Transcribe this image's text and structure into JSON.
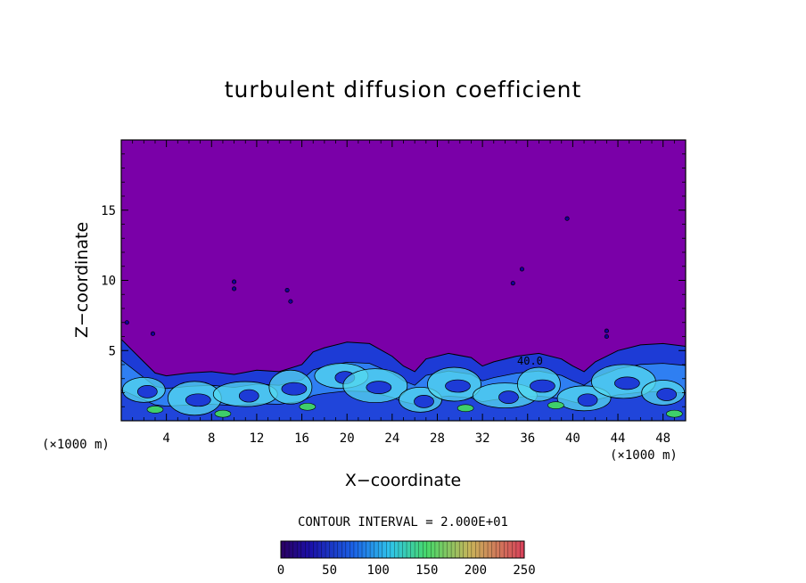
{
  "chart_data": {
    "type": "heatmap",
    "title": "turbulent diffusion coefficient",
    "xlabel": "X−coordinate",
    "ylabel": "Z−coordinate",
    "x_unit_label": "(×1000 m)",
    "xlim": [
      0,
      50
    ],
    "ylim": [
      0,
      20
    ],
    "x_ticks": [
      4,
      8,
      12,
      16,
      20,
      24,
      28,
      32,
      36,
      40,
      44,
      48
    ],
    "y_ticks": [
      5,
      10,
      15
    ],
    "contour_interval_text": "CONTOUR INTERVAL = 2.000E+01",
    "contour_label": "40.0",
    "colorbar": {
      "ticks": [
        0,
        50,
        100,
        150,
        200,
        250
      ],
      "range": [
        0,
        250
      ]
    },
    "background_level": 0,
    "turbulent_layer_top_profile": [
      {
        "x": 0,
        "z": 5.8
      },
      {
        "x": 1,
        "z": 5.0
      },
      {
        "x": 2,
        "z": 4.2
      },
      {
        "x": 3,
        "z": 3.4
      },
      {
        "x": 4,
        "z": 3.2
      },
      {
        "x": 6,
        "z": 3.4
      },
      {
        "x": 8,
        "z": 3.5
      },
      {
        "x": 10,
        "z": 3.3
      },
      {
        "x": 12,
        "z": 3.6
      },
      {
        "x": 14,
        "z": 3.5
      },
      {
        "x": 16,
        "z": 4.0
      },
      {
        "x": 17,
        "z": 4.9
      },
      {
        "x": 18,
        "z": 5.2
      },
      {
        "x": 20,
        "z": 5.6
      },
      {
        "x": 22,
        "z": 5.5
      },
      {
        "x": 24,
        "z": 4.6
      },
      {
        "x": 25,
        "z": 3.9
      },
      {
        "x": 26,
        "z": 3.5
      },
      {
        "x": 27,
        "z": 4.4
      },
      {
        "x": 29,
        "z": 4.8
      },
      {
        "x": 31,
        "z": 4.5
      },
      {
        "x": 32,
        "z": 3.9
      },
      {
        "x": 33,
        "z": 4.2
      },
      {
        "x": 35,
        "z": 4.6
      },
      {
        "x": 37,
        "z": 4.8
      },
      {
        "x": 39,
        "z": 4.4
      },
      {
        "x": 40,
        "z": 3.9
      },
      {
        "x": 41,
        "z": 3.5
      },
      {
        "x": 42,
        "z": 4.2
      },
      {
        "x": 44,
        "z": 5.0
      },
      {
        "x": 46,
        "z": 5.4
      },
      {
        "x": 48,
        "z": 5.5
      },
      {
        "x": 50,
        "z": 5.3
      }
    ]
  },
  "colors": {
    "background_field": "#7a00a8",
    "low_blue": "#1d3bd6",
    "mid_blue": "#2f7ff2",
    "cyan": "#54d8ef",
    "green": "#3fcf6a"
  }
}
